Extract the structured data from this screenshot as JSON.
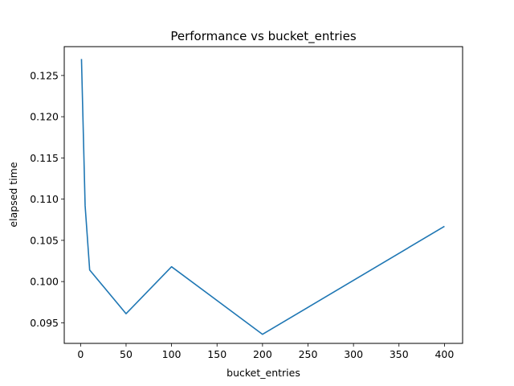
{
  "chart_data": {
    "type": "line",
    "title": "Performance vs bucket_entries",
    "xlabel": "bucket_entries",
    "ylabel": "elapsed time",
    "xlim": [
      -17.95,
      419.95
    ],
    "ylim": [
      0.0925,
      0.1285
    ],
    "xticks": [
      0,
      50,
      100,
      150,
      200,
      250,
      300,
      350,
      400
    ],
    "xtick_labels": [
      "0",
      "50",
      "100",
      "150",
      "200",
      "250",
      "300",
      "350",
      "400"
    ],
    "yticks": [
      0.095,
      0.1,
      0.105,
      0.11,
      0.115,
      0.12,
      0.125
    ],
    "ytick_labels": [
      "0.095",
      "0.100",
      "0.105",
      "0.110",
      "0.115",
      "0.120",
      "0.125"
    ],
    "grid": false,
    "series": [
      {
        "color": "#1f77b4",
        "x": [
          1,
          5,
          10,
          50,
          100,
          200,
          400
        ],
        "y": [
          0.127,
          0.1092,
          0.1014,
          0.0961,
          0.1018,
          0.0936,
          0.1067
        ]
      }
    ]
  }
}
